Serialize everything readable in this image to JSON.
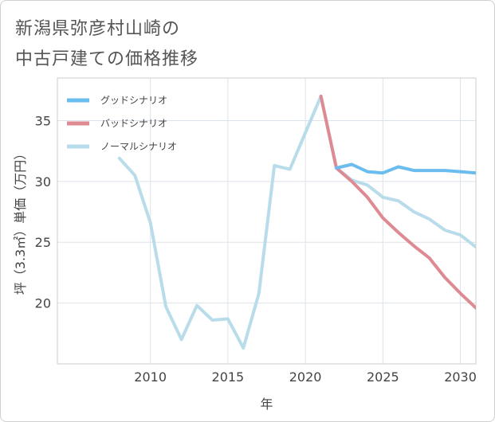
{
  "title_line1": "新潟県弥彦村山崎の",
  "title_line2": "中古戸建ての価格推移",
  "chart_data": {
    "type": "line",
    "xlabel": "年",
    "ylabel": "坪（3.3㎡）単価（万円）",
    "xlim": [
      2004,
      2031
    ],
    "ylim": [
      15,
      38.5
    ],
    "xticks": [
      2010,
      2015,
      2020,
      2025,
      2030
    ],
    "yticks": [
      20,
      25,
      30,
      35
    ],
    "legend_position": "top-left",
    "series": [
      {
        "name": "グッドシナリオ",
        "color": "#6bbcef",
        "x": [
          2022,
          2023,
          2024,
          2025,
          2026,
          2027,
          2028,
          2029,
          2030,
          2031
        ],
        "values": [
          31.1,
          31.4,
          30.8,
          30.7,
          31.2,
          30.9,
          30.9,
          30.9,
          30.8,
          30.7
        ]
      },
      {
        "name": "バッドシナリオ",
        "color": "#dd8a92",
        "x": [
          2021,
          2022,
          2023,
          2024,
          2025,
          2026,
          2027,
          2028,
          2029,
          2030,
          2031
        ],
        "values": [
          37.0,
          31.1,
          30.0,
          28.7,
          27.0,
          25.8,
          24.7,
          23.7,
          22.1,
          20.8,
          19.6
        ]
      },
      {
        "name": "ノーマルシナリオ",
        "color": "#b9dcea",
        "x": [
          2008,
          2009,
          2010,
          2011,
          2012,
          2013,
          2014,
          2015,
          2016,
          2017,
          2018,
          2019,
          2020,
          2021,
          2022,
          2023,
          2024,
          2025,
          2026,
          2027,
          2028,
          2029,
          2030,
          2031
        ],
        "values": [
          31.9,
          30.5,
          26.6,
          19.7,
          17.0,
          19.8,
          18.6,
          18.7,
          16.3,
          20.8,
          31.3,
          31.0,
          34.0,
          37.0,
          31.1,
          30.1,
          29.7,
          28.7,
          28.4,
          27.5,
          26.9,
          26.0,
          25.6,
          24.6
        ]
      }
    ]
  }
}
